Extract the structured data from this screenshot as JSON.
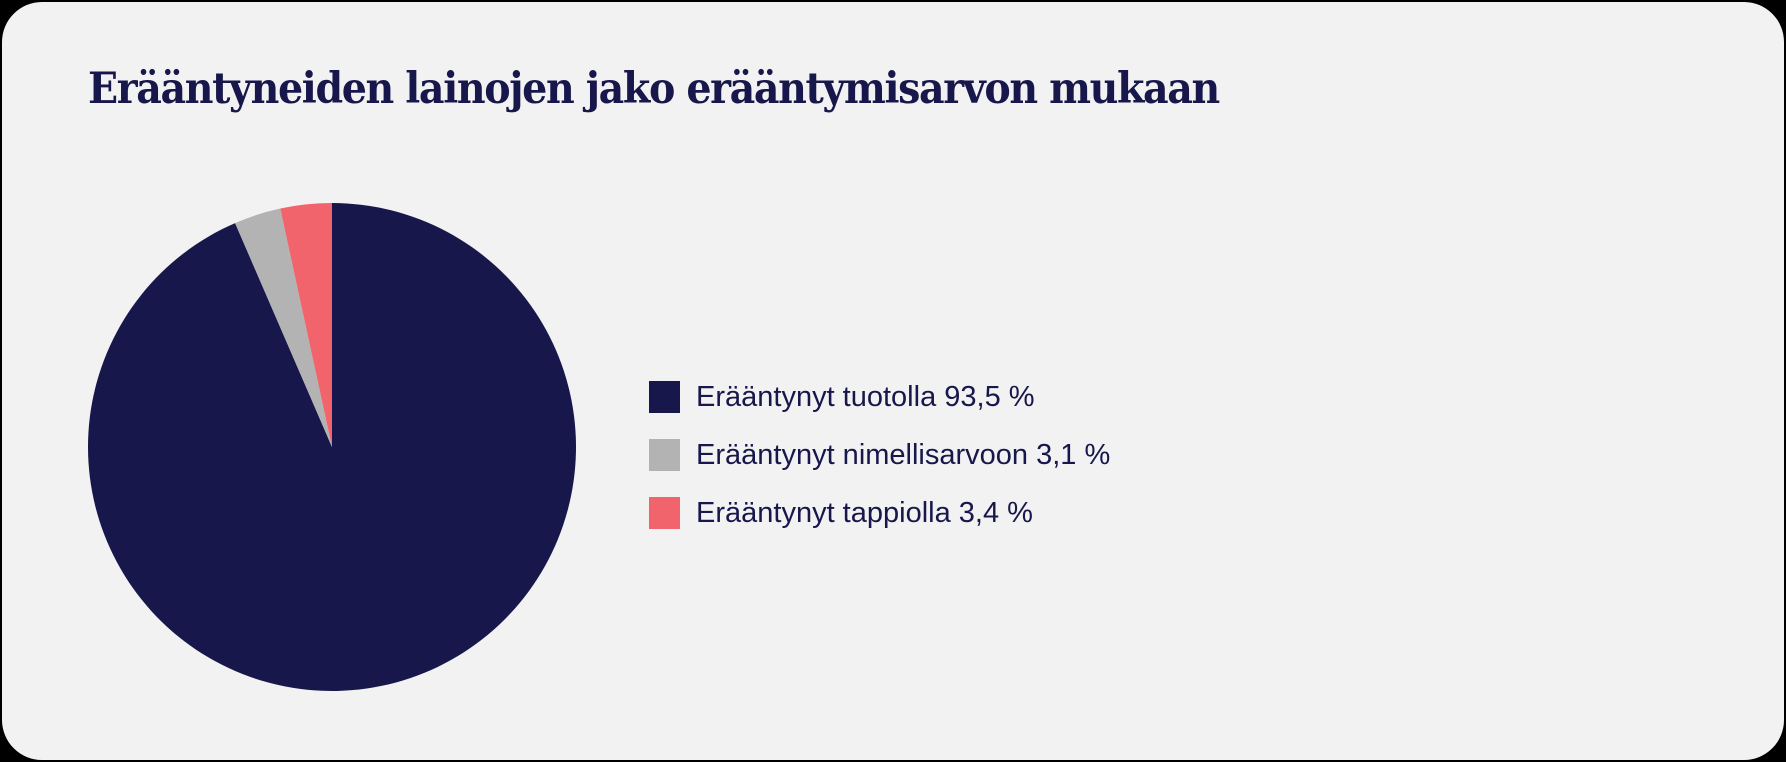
{
  "title": "Erääntyneiden lainojen jako erääntymisarvon mukaan",
  "legend": [
    {
      "label": "Erääntynyt tuotolla 93,5 %",
      "color": "#18174c"
    },
    {
      "label": "Erääntynyt nimellisarvoon 3,1 %",
      "color": "#b3b3b3"
    },
    {
      "label": "Erääntynyt tappiolla 3,4 %",
      "color": "#f1646b"
    }
  ],
  "colors": {
    "background": "#f2f2f2",
    "frame": "#000000",
    "text": "#18174c"
  },
  "chart_data": {
    "type": "pie",
    "title": "Erääntyneiden lainojen jako erääntymisarvon mukaan",
    "categories": [
      "Erääntynyt tuotolla",
      "Erääntynyt nimellisarvoon",
      "Erääntynyt tappiolla"
    ],
    "values": [
      93.5,
      3.1,
      3.4
    ],
    "unit": "%",
    "colors": [
      "#18174c",
      "#b3b3b3",
      "#f1646b"
    ],
    "start_angle": "12 o'clock",
    "direction": "clockwise",
    "legend_position": "right",
    "xlabel": "",
    "ylabel": ""
  }
}
